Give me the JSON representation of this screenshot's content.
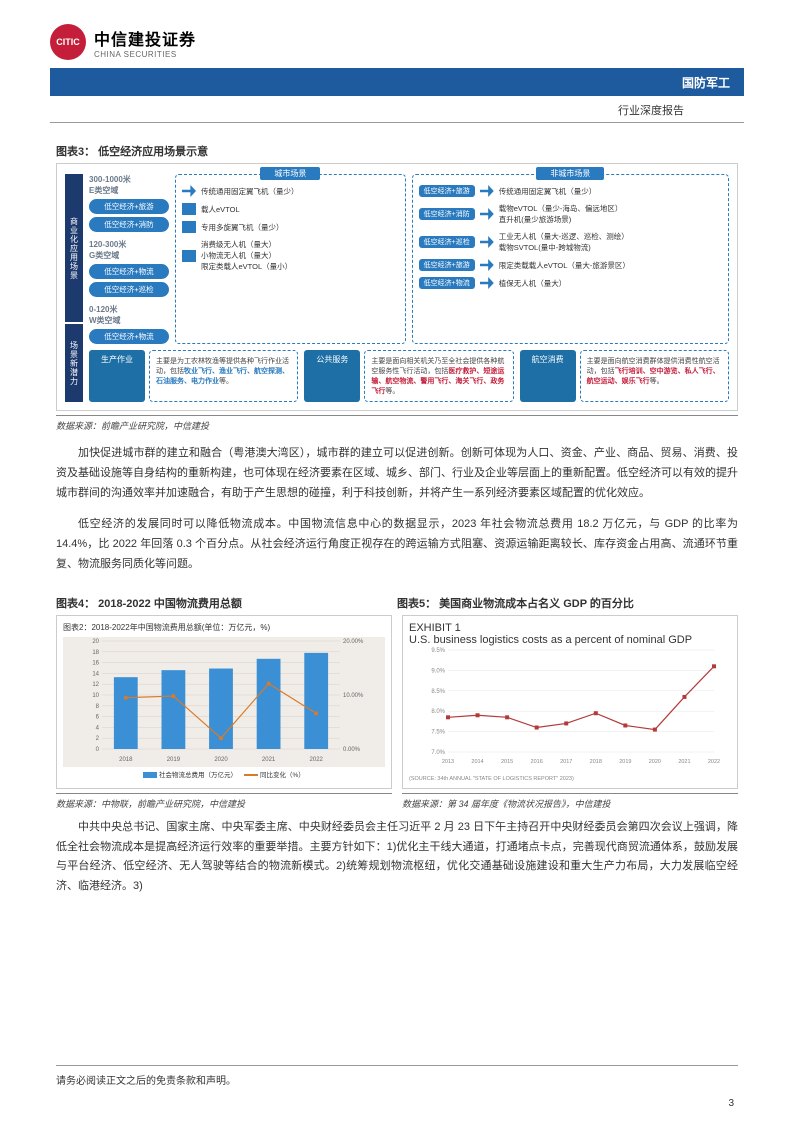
{
  "header": {
    "logo_cn": "中信建投证券",
    "logo_en": "CHINA SECURITIES",
    "logo_mark": "CITIC",
    "band": "国防军工",
    "subhead": "行业深度报告"
  },
  "fig3": {
    "title": "图表3：  低空经济应用场景示意",
    "left_segments": [
      "商业化应用场景",
      "场景新潜力"
    ],
    "altitudes": [
      {
        "label": "300-1000米\nE类空域",
        "pills": [
          "低空经济+旅游",
          "低空经济+消防"
        ]
      },
      {
        "label": "120-300米\nG类空域",
        "pills": [
          "低空经济+物流",
          "低空经济+巡检"
        ]
      },
      {
        "label": "0-120米\nW类空域",
        "pills": [
          "低空经济+物流"
        ]
      }
    ],
    "city_scene": {
      "header": "城市场景",
      "rows": [
        {
          "icon": "plane",
          "txt": "传统通用固定翼飞机（量少）"
        },
        {
          "icon": "block",
          "txt": "载人eVTOL"
        },
        {
          "icon": "block",
          "txt": "专用多旋翼飞机（量少）"
        },
        {
          "icon": "block",
          "txt": "消费级无人机（量大）\n小物流无人机（量大）\n限定类载人eVTOL（量小）"
        }
      ]
    },
    "noncity_scene": {
      "header": "非城市场景",
      "rows": [
        {
          "pill": "低空经济+旅游",
          "txt": "传统通用固定翼飞机（量少）"
        },
        {
          "pill": "低空经济+消防",
          "txt": "载物eVTOL（量少-海岛、偏远地区）\n直升机(量少旅游场景)"
        },
        {
          "pill": "低空经济+巡检",
          "txt": "工业无人机（量大-巡逻、巡检、测绘）\n载物SVTOL(量中-跨城物流)"
        },
        {
          "pill": "低空经济+旅游",
          "txt": "限定类载载人eVTOL（量大-旅游景区）"
        },
        {
          "pill": "低空经济+物流",
          "txt": "植保无人机（量大）"
        }
      ]
    },
    "bottom": [
      {
        "pill": "生产作业",
        "body": "主要是为工农林牧渔等提供各种飞行作业活动，包括",
        "hl": "牧业飞行、渔业飞行、航空探测、石油服务、电力作业",
        "tail": "等。",
        "hl_color": "blue"
      },
      {
        "pill": "公共服务",
        "body": "主要是面向相关机关乃至全社会提供各种航空服务性飞行活动，包括",
        "hl": "医疗救护、短途运输、航空物流、警用飞行、海关飞行、政务飞行",
        "tail": "等。",
        "hl_color": "red"
      },
      {
        "pill": "航空消费",
        "body": "主要是面向航空消费群体提供消费性航空活动，包括",
        "hl": "飞行培训、空中游览、私人飞行、航空运动、娱乐飞行",
        "tail": "等。",
        "hl_color": "red"
      }
    ],
    "source": "数据来源：前瞻产业研究院，中信建投"
  },
  "para1": "加快促进城市群的建立和融合（粤港澳大湾区），城市群的建立可以促进创新。创新可体现为人口、资金、产业、商品、贸易、消费、投资及基础设施等自身结构的重新构建，也可体现在经济要素在区域、城乡、部门、行业及企业等层面上的重新配置。低空经济可以有效的提升城市群间的沟通效率并加速融合，有助于产生思想的碰撞，利于科技创新，并将产生一系列经济要素区域配置的优化效应。",
  "para2": "低空经济的发展同时可以降低物流成本。中国物流信息中心的数据显示，2023 年社会物流总费用 18.2 万亿元，与 GDP 的比率为 14.4%，比 2022 年回落 0.3 个百分点。从社会经济运行角度正视存在的跨运输方式阻塞、资源运输距离较长、库存资金占用高、流通环节重复、物流服务同质化等问题。",
  "fig4": {
    "title": "图表4：  2018-2022 中国物流费用总额",
    "inner_title": "图表2：2018-2022年中国物流费用总额(单位：万亿元，%)",
    "type": "bar+line",
    "years": [
      "2018",
      "2019",
      "2020",
      "2021",
      "2022"
    ],
    "bar_values": [
      13.3,
      14.6,
      14.9,
      16.7,
      17.8
    ],
    "line_values": [
      9.5,
      9.8,
      2.0,
      12.1,
      6.6
    ],
    "ylim_left": [
      0,
      20
    ],
    "ytick_left": [
      0,
      2,
      4,
      6,
      8,
      10,
      12,
      14,
      16,
      18,
      20
    ],
    "ylim_right": [
      0,
      20
    ],
    "ytick_right_labels": [
      "0.00%",
      "10.00%",
      "20.00%"
    ],
    "bar_color": "#3b8fd4",
    "line_color": "#d97a2a",
    "marker_color": "#d97a2a",
    "grid_color": "#d9d0c5",
    "background_color": "#f0ece8",
    "legend": [
      "社会物流总费用（万亿元）",
      "同比变化（%）"
    ],
    "source": "数据来源：中物联，前瞻产业研究院，中信建投"
  },
  "fig5": {
    "title": "图表5：  美国商业物流成本占名义 GDP 的百分比",
    "exhibit_label": "EXHIBIT 1",
    "inner_title": "U.S. business logistics costs as a percent of nominal GDP",
    "type": "line",
    "years": [
      "2013",
      "2014",
      "2015",
      "2016",
      "2017",
      "2018",
      "2019",
      "2020",
      "2021",
      "2022"
    ],
    "values": [
      7.85,
      7.9,
      7.85,
      7.6,
      7.7,
      7.95,
      7.65,
      7.55,
      8.35,
      9.1
    ],
    "ylim": [
      7.0,
      9.5
    ],
    "yticks": [
      "7.0%",
      "7.5%",
      "8.0%",
      "8.5%",
      "9.0%",
      "9.5%"
    ],
    "line_color": "#b33a3a",
    "marker_color": "#b33a3a",
    "grid_color": "#e5e5e5",
    "background_color": "#ffffff",
    "footer_src": "(SOURCE: 34th ANNUAL \"STATE OF LOGISTICS REPORT\" 2023)",
    "source": "数据来源：第 34 届年度《物流状况报告》，中信建投"
  },
  "para3": "中共中央总书记、国家主席、中央军委主席、中央财经委员会主任习近平 2 月 23 日下午主持召开中央财经委员会第四次会议上强调，降低全社会物流成本是提高经济运行效率的重要举措。主要方针如下：1)优化主干线大通道，打通堵点卡点，完善现代商贸流通体系，鼓励发展与平台经济、低空经济、无人驾驶等结合的物流新模式。2)统筹规划物流枢纽，优化交通基础设施建设和重大生产力布局，大力发展临空经济、临港经济。3)",
  "footer": "请务必阅读正文之后的免责条款和声明。",
  "page_number": "3"
}
